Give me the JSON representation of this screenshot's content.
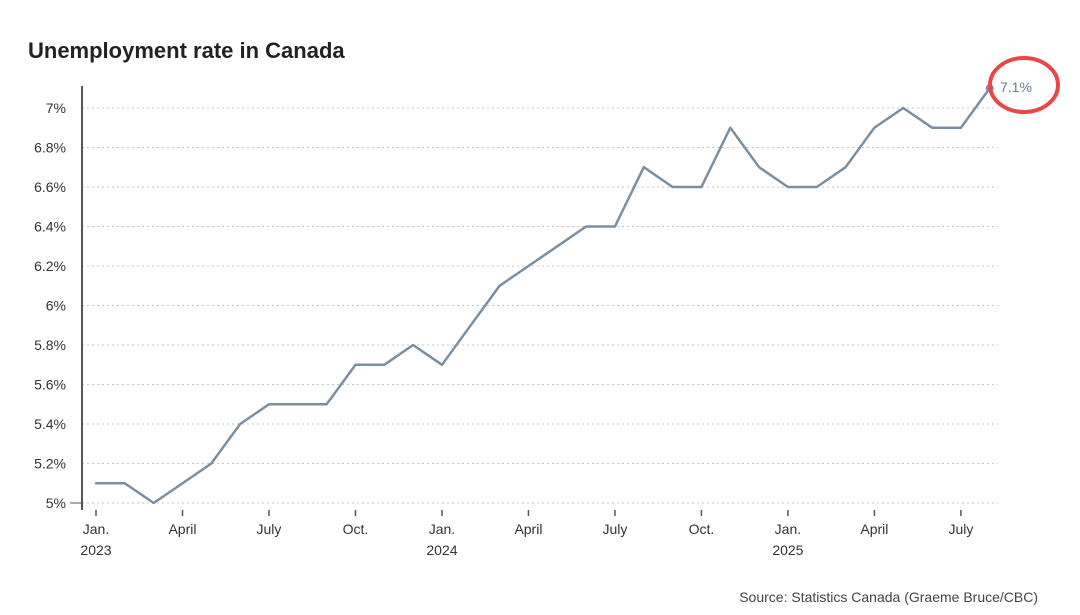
{
  "chart_data": {
    "type": "line",
    "title": "Unemployment rate in Canada",
    "source": "Source: Statistics Canada (Graeme Bruce/CBC)",
    "xlabel": "",
    "ylabel": "",
    "ylim": [
      5,
      7.1
    ],
    "yticks": [
      5,
      5.2,
      5.4,
      5.6,
      5.8,
      6,
      6.2,
      6.4,
      6.6,
      6.8,
      7
    ],
    "ytick_labels": [
      "5%",
      "5.2%",
      "5.4%",
      "5.6%",
      "5.8%",
      "6%",
      "6.2%",
      "6.4%",
      "6.6%",
      "6.8%",
      "7%"
    ],
    "xticks": [
      {
        "x": "2023-01",
        "label": "Jan.",
        "year": "2023"
      },
      {
        "x": "2023-04",
        "label": "April",
        "year": ""
      },
      {
        "x": "2023-07",
        "label": "July",
        "year": ""
      },
      {
        "x": "2023-10",
        "label": "Oct.",
        "year": ""
      },
      {
        "x": "2024-01",
        "label": "Jan.",
        "year": "2024"
      },
      {
        "x": "2024-04",
        "label": "April",
        "year": ""
      },
      {
        "x": "2024-07",
        "label": "July",
        "year": ""
      },
      {
        "x": "2024-10",
        "label": "Oct.",
        "year": ""
      },
      {
        "x": "2025-01",
        "label": "Jan.",
        "year": "2025"
      },
      {
        "x": "2025-04",
        "label": "April",
        "year": ""
      },
      {
        "x": "2025-07",
        "label": "July",
        "year": ""
      }
    ],
    "grid": "horizontal dashed",
    "series": [
      {
        "color": "#7b8fa1",
        "x": [
          "2023-01",
          "2023-02",
          "2023-03",
          "2023-04",
          "2023-05",
          "2023-06",
          "2023-07",
          "2023-08",
          "2023-09",
          "2023-10",
          "2023-11",
          "2023-12",
          "2024-01",
          "2024-02",
          "2024-03",
          "2024-04",
          "2024-05",
          "2024-06",
          "2024-07",
          "2024-08",
          "2024-09",
          "2024-10",
          "2024-11",
          "2024-12",
          "2025-01",
          "2025-02",
          "2025-03",
          "2025-04",
          "2025-05",
          "2025-06",
          "2025-07",
          "2025-08"
        ],
        "values": [
          5.1,
          5.1,
          5.0,
          5.1,
          5.2,
          5.4,
          5.5,
          5.5,
          5.5,
          5.7,
          5.7,
          5.8,
          5.7,
          5.9,
          6.1,
          6.2,
          6.3,
          6.4,
          6.4,
          6.7,
          6.6,
          6.6,
          6.9,
          6.7,
          6.6,
          6.6,
          6.7,
          6.9,
          7.0,
          6.9,
          6.9,
          7.1
        ]
      }
    ],
    "annotation": {
      "text": "7.1%",
      "x": "2025-08",
      "value": 7.1,
      "circle_color": "#e8474a"
    }
  }
}
